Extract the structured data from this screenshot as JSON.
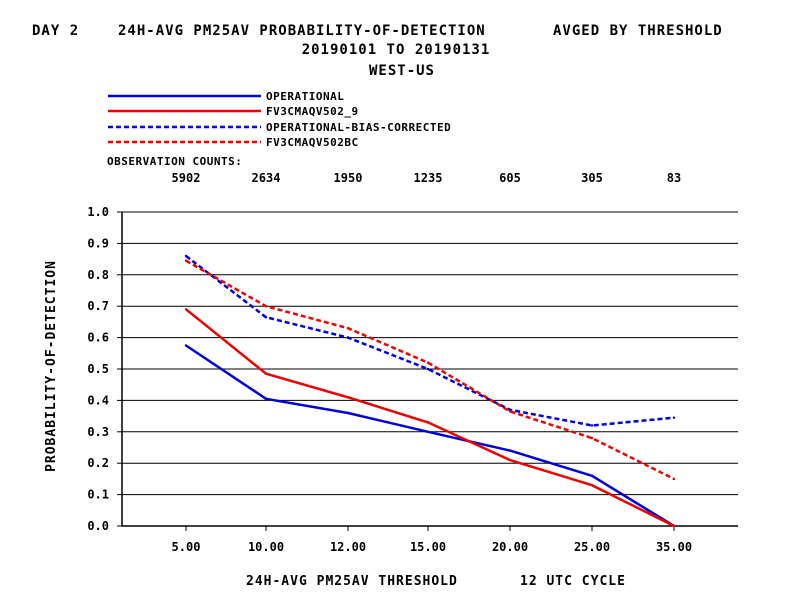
{
  "title": {
    "line1_left": "DAY 2",
    "line1_center": "24H-AVG PM25AV PROBABILITY-OF-DETECTION",
    "line1_right": "AVGED BY THRESHOLD",
    "line2": "20190101 TO 20190131",
    "line3": "WEST-US"
  },
  "observation_counts_label": "OBSERVATION COUNTS:",
  "observation_counts": [
    "5902",
    "2634",
    "1950",
    "1235",
    "605",
    "305",
    "83"
  ],
  "colors": {
    "blue": "#0000dd",
    "red": "#ee0000"
  },
  "chart_data": {
    "type": "line",
    "categories": [
      "5.00",
      "10.00",
      "12.00",
      "15.00",
      "20.00",
      "25.00",
      "35.00"
    ],
    "xlabel": "24H-AVG PM25AV THRESHOLD",
    "xlabel_suffix": "12 UTC CYCLE",
    "ylabel": "PROBABILITY-OF-DETECTION",
    "ylim": [
      0.0,
      1.0
    ],
    "yticks": [
      "0.0",
      "0.1",
      "0.2",
      "0.3",
      "0.4",
      "0.5",
      "0.6",
      "0.7",
      "0.8",
      "0.9",
      "1.0"
    ],
    "grid": true,
    "legend_position": "top-left",
    "series": [
      {
        "name": "OPERATIONAL",
        "color": "#0000dd",
        "dash": false,
        "values": [
          0.575,
          0.405,
          0.36,
          0.3,
          0.24,
          0.16,
          0.0
        ]
      },
      {
        "name": "FV3CMAQV502_9",
        "color": "#ee0000",
        "dash": false,
        "values": [
          0.69,
          0.485,
          0.41,
          0.33,
          0.21,
          0.13,
          0.0
        ]
      },
      {
        "name": "OPERATIONAL-BIAS-CORRECTED",
        "color": "#0000dd",
        "dash": true,
        "values": [
          0.86,
          0.665,
          0.6,
          0.5,
          0.37,
          0.32,
          0.345
        ]
      },
      {
        "name": "FV3CMAQV502BC",
        "color": "#ee0000",
        "dash": true,
        "values": [
          0.845,
          0.7,
          0.63,
          0.52,
          0.365,
          0.28,
          0.15
        ]
      }
    ]
  }
}
